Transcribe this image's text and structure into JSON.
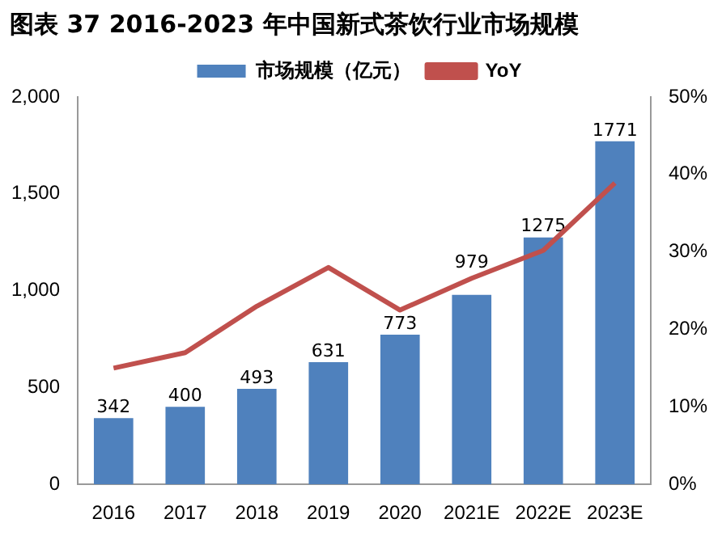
{
  "chart_data": {
    "type": "bar",
    "title": "图表 37 2016-2023 年中国新式茶饮行业市场规模",
    "categories": [
      "2016",
      "2017",
      "2018",
      "2019",
      "2020",
      "2021E",
      "2022E",
      "2023E"
    ],
    "series": [
      {
        "name": "市场规模（亿元）",
        "color": "#4f81bd",
        "values": [
          342,
          400,
          493,
          631,
          773,
          979,
          1275,
          1771
        ],
        "data_labels": true
      },
      {
        "name": "YoY",
        "type": "line",
        "axis": "y2",
        "color": "#c0504d",
        "values": [
          15,
          17,
          23,
          28,
          22.5,
          26.6,
          30.2,
          38.9
        ]
      }
    ],
    "ylim": [
      0,
      2000
    ],
    "yticks": [
      0,
      {
        "value": 500,
        "label": "500"
      },
      {
        "value": 1000,
        "label": "1,000"
      },
      {
        "value": 1500,
        "label": "1,500"
      },
      {
        "value": 2000,
        "label": "2,000"
      }
    ],
    "y2lim": [
      0,
      50
    ],
    "y2ticks": [
      {
        "value": 0,
        "label": "0%"
      },
      {
        "value": 10,
        "label": "10%"
      },
      {
        "value": 20,
        "label": "20%"
      },
      {
        "value": 30,
        "label": "30%"
      },
      {
        "value": 40,
        "label": "40%"
      },
      {
        "value": 50,
        "label": "50%"
      }
    ],
    "legend": "top",
    "grid": false,
    "marker": "none"
  }
}
